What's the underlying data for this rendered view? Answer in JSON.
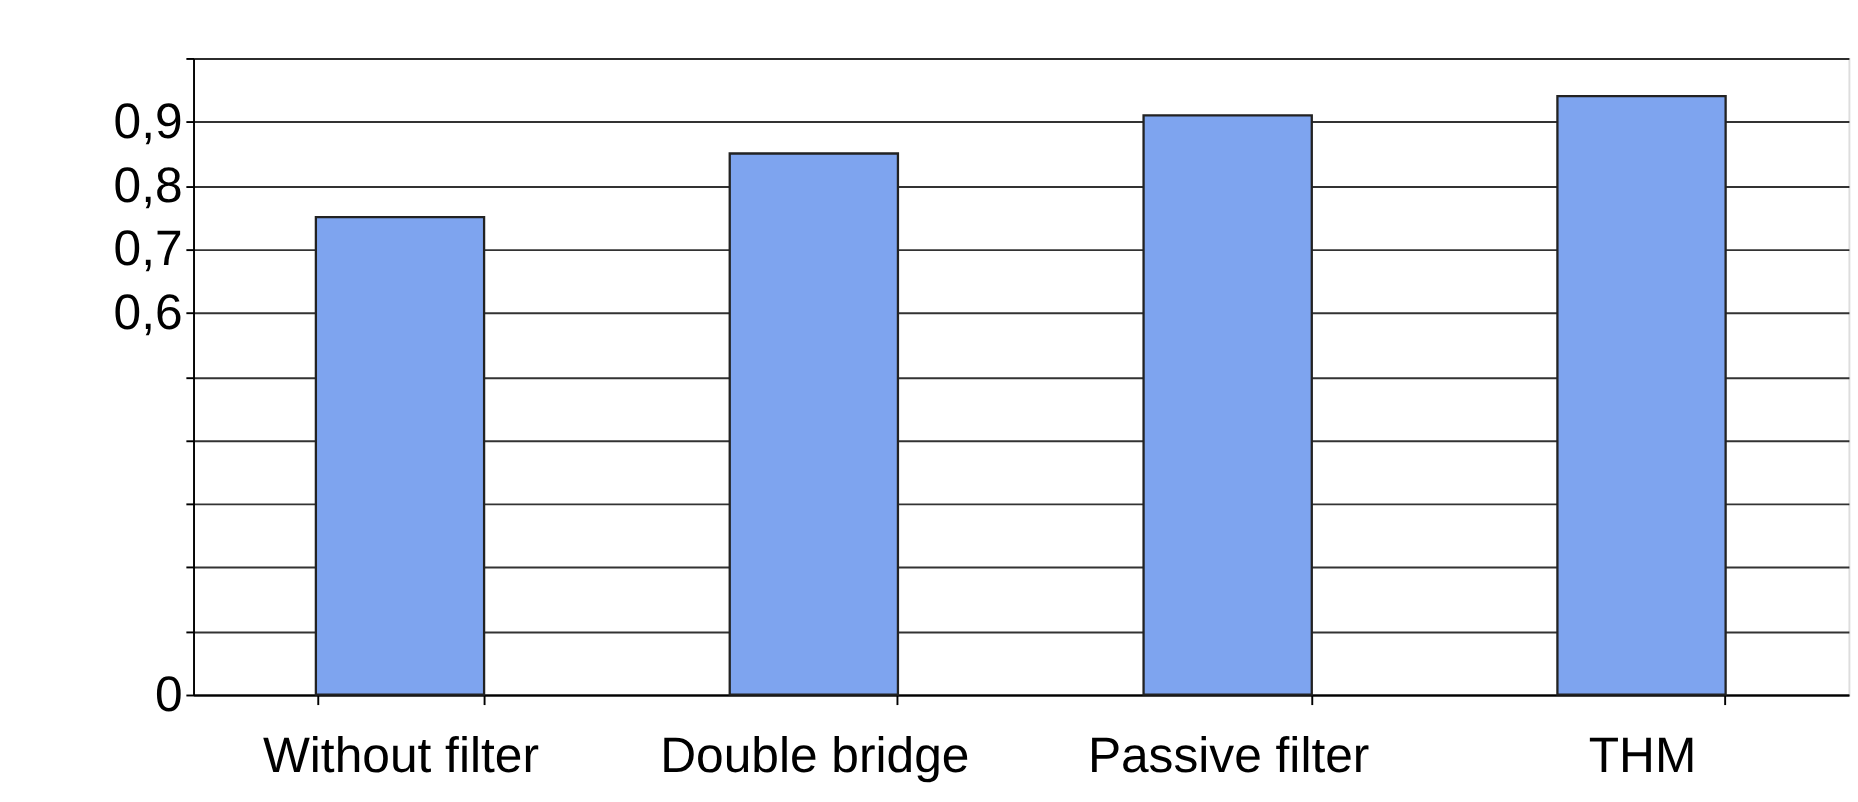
{
  "chart_data": {
    "type": "bar",
    "categories": [
      "Without filter",
      "Double bridge",
      "Passive filter",
      "THM"
    ],
    "values": [
      0.75,
      0.85,
      0.91,
      0.94
    ],
    "color": "#7ea4ef",
    "ylim": [
      0,
      1
    ],
    "yticks": [
      0,
      {
        "value": 0.1,
        "label": null
      },
      {
        "value": 0.2,
        "label": null
      },
      {
        "value": 0.3,
        "label": null
      },
      {
        "value": 0.4,
        "label": null
      },
      {
        "value": 0.5,
        "label": null
      },
      {
        "value": 0.6,
        "label": "0,6"
      },
      {
        "value": 0.7,
        "label": "0,7"
      },
      {
        "value": 0.8,
        "label": "0,8"
      },
      {
        "value": 0.9,
        "label": "0,9"
      },
      {
        "value": 1,
        "label": null
      }
    ],
    "grid": "y"
  }
}
